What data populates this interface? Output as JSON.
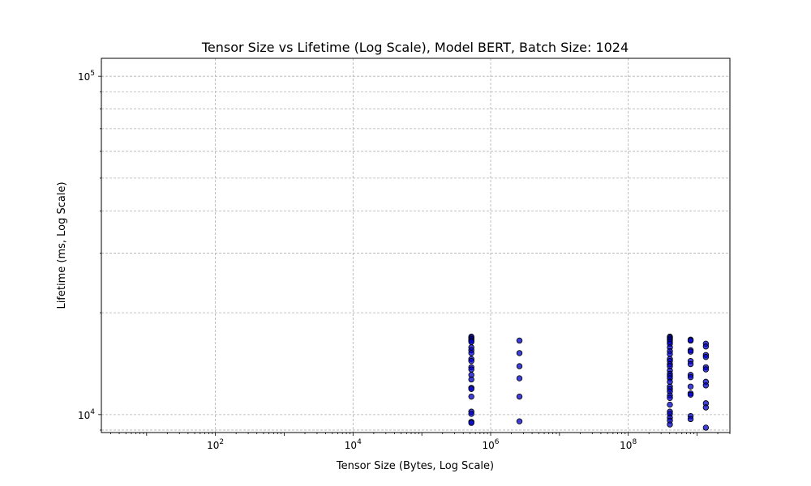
{
  "chart_data": {
    "type": "scatter",
    "title": "Tensor Size vs Lifetime (Log Scale), Model BERT, Batch Size: 1024",
    "xlabel": "Tensor Size (Bytes, Log Scale)",
    "ylabel": "Lifetime (ms, Log Scale)",
    "x_scale": "log",
    "y_scale": "log",
    "xlim": [
      2.2,
      3000000000
    ],
    "ylim": [
      8850,
      113000
    ],
    "x_ticks": [
      {
        "value": 100,
        "base": "10",
        "exp": "2"
      },
      {
        "value": 10000,
        "base": "10",
        "exp": "4"
      },
      {
        "value": 1000000,
        "base": "10",
        "exp": "6"
      },
      {
        "value": 100000000,
        "base": "10",
        "exp": "8"
      }
    ],
    "y_ticks": [
      {
        "value": 10000,
        "base": "10",
        "exp": "4"
      },
      {
        "value": 100000,
        "base": "10",
        "exp": "5"
      }
    ],
    "grid": true,
    "marker_color": "#0000cc",
    "marker_edge_color": "#000000",
    "series": [
      {
        "points": [
          [
            524288,
            17000
          ],
          [
            524288,
            16850
          ],
          [
            524288,
            16700
          ],
          [
            524288,
            16550
          ],
          [
            524288,
            16400
          ],
          [
            524288,
            15800
          ],
          [
            524288,
            15500
          ],
          [
            524288,
            15200
          ],
          [
            524288,
            14600
          ],
          [
            524288,
            14400
          ],
          [
            524288,
            13800
          ],
          [
            524288,
            13600
          ],
          [
            524288,
            13100
          ],
          [
            524288,
            12700
          ],
          [
            524288,
            12000
          ],
          [
            524288,
            11900
          ],
          [
            524288,
            11300
          ],
          [
            524288,
            10200
          ],
          [
            524288,
            10050
          ],
          [
            524288,
            9520
          ],
          [
            524288,
            9450
          ],
          [
            2621440,
            16550
          ],
          [
            2621440,
            15200
          ],
          [
            2621440,
            13900
          ],
          [
            2621440,
            12800
          ],
          [
            2621440,
            11300
          ],
          [
            2621440,
            9550
          ],
          [
            402653184,
            17000
          ],
          [
            402653184,
            16900
          ],
          [
            402653184,
            16750
          ],
          [
            402653184,
            16600
          ],
          [
            402653184,
            16400
          ],
          [
            402653184,
            16200
          ],
          [
            402653184,
            15800
          ],
          [
            402653184,
            15400
          ],
          [
            402653184,
            15100
          ],
          [
            402653184,
            14600
          ],
          [
            402653184,
            14400
          ],
          [
            402653184,
            14100
          ],
          [
            402653184,
            13900
          ],
          [
            402653184,
            13500
          ],
          [
            402653184,
            13200
          ],
          [
            402653184,
            13000
          ],
          [
            402653184,
            12800
          ],
          [
            402653184,
            12500
          ],
          [
            402653184,
            12100
          ],
          [
            402653184,
            11900
          ],
          [
            402653184,
            11700
          ],
          [
            402653184,
            11400
          ],
          [
            402653184,
            11200
          ],
          [
            402653184,
            10700
          ],
          [
            402653184,
            10200
          ],
          [
            402653184,
            10050
          ],
          [
            402653184,
            9800
          ],
          [
            402653184,
            9600
          ],
          [
            402653184,
            9350
          ],
          [
            805306368,
            16650
          ],
          [
            805306368,
            16550
          ],
          [
            805306368,
            15500
          ],
          [
            805306368,
            15350
          ],
          [
            805306368,
            14400
          ],
          [
            805306368,
            14100
          ],
          [
            805306368,
            13100
          ],
          [
            805306368,
            12900
          ],
          [
            805306368,
            12100
          ],
          [
            805306368,
            11550
          ],
          [
            805306368,
            11450
          ],
          [
            805306368,
            9900
          ],
          [
            805306368,
            9700
          ],
          [
            1342177280,
            16200
          ],
          [
            1342177280,
            15900
          ],
          [
            1342177280,
            15000
          ],
          [
            1342177280,
            14800
          ],
          [
            1342177280,
            13800
          ],
          [
            1342177280,
            13600
          ],
          [
            1342177280,
            12500
          ],
          [
            1342177280,
            12200
          ],
          [
            1342177280,
            10800
          ],
          [
            1342177280,
            10500
          ],
          [
            1342177280,
            9150
          ]
        ]
      }
    ]
  }
}
